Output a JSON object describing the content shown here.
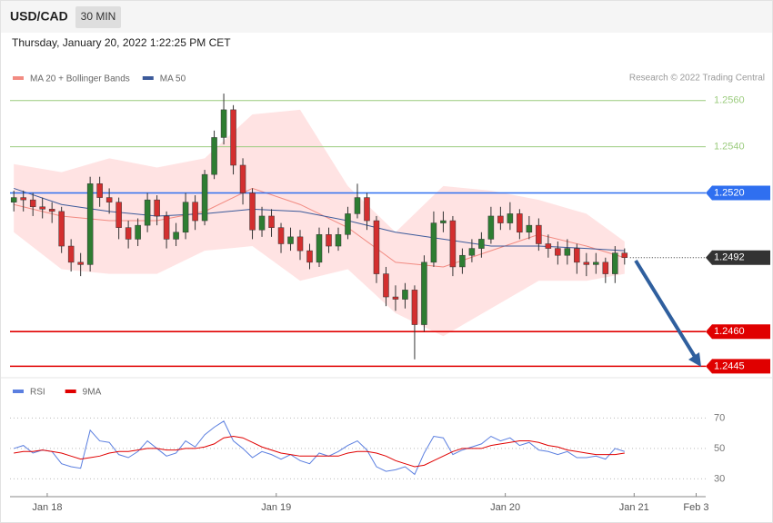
{
  "header": {
    "symbol": "USD/CAD",
    "timeframe": "30 MIN",
    "datetime": "Thursday, January 20, 2022 1:22:25 PM CET",
    "source": "Research © 2022 Trading Central"
  },
  "chart_data": [
    {
      "type": "candlestick",
      "xlim": [
        -0.4,
        72.5
      ],
      "ylim": [
        1.2442,
        1.2576
      ],
      "up_color": "#2e7d32",
      "down_color": "#d32f2f",
      "open": [
        1.2516,
        1.2518,
        1.2517,
        1.2514,
        1.2513,
        1.2512,
        1.2497,
        1.249,
        1.2489,
        1.2524,
        1.2518,
        1.2516,
        1.2505,
        1.25,
        1.2506,
        1.2517,
        1.251,
        1.25,
        1.2503,
        1.2516,
        1.2508,
        1.2528,
        1.2544,
        1.2556,
        1.2532,
        1.252,
        1.2504,
        1.251,
        1.2505,
        1.2498,
        1.2501,
        1.2495,
        1.249,
        1.2502,
        1.2497,
        1.2502,
        1.2511,
        1.2518,
        1.2508,
        1.2485,
        1.2475,
        1.2474,
        1.2478,
        1.2463,
        1.249,
        1.2507,
        1.2508,
        1.2488,
        1.2493,
        1.2496,
        1.25,
        1.251,
        1.2507,
        1.2511,
        1.2503,
        1.2506,
        1.2498,
        1.2496,
        1.2493,
        1.2496,
        1.249,
        1.2489,
        1.249,
        1.2485,
        1.2494
      ],
      "high": [
        1.2521,
        1.2521,
        1.252,
        1.2518,
        1.2516,
        1.2514,
        1.25,
        1.2494,
        1.2527,
        1.2527,
        1.2522,
        1.2518,
        1.2508,
        1.2509,
        1.252,
        1.2519,
        1.2512,
        1.2507,
        1.252,
        1.2519,
        1.253,
        1.2547,
        1.2563,
        1.2558,
        1.2535,
        1.2522,
        1.2514,
        1.2513,
        1.2507,
        1.2505,
        1.2504,
        1.2498,
        1.2505,
        1.2505,
        1.2505,
        1.2514,
        1.2524,
        1.252,
        1.251,
        1.2488,
        1.248,
        1.2481,
        1.248,
        1.2493,
        1.2512,
        1.2512,
        1.251,
        1.2496,
        1.25,
        1.2503,
        1.2514,
        1.2514,
        1.2516,
        1.2513,
        1.251,
        1.2509,
        1.2502,
        1.2499,
        1.25,
        1.2498,
        1.2494,
        1.2494,
        1.2492,
        1.2497,
        1.2496
      ],
      "low": [
        1.2512,
        1.2512,
        1.251,
        1.2509,
        1.2507,
        1.2494,
        1.2486,
        1.2484,
        1.2486,
        1.2514,
        1.2511,
        1.25,
        1.2496,
        1.2497,
        1.2503,
        1.2506,
        1.2496,
        1.2497,
        1.25,
        1.2504,
        1.2506,
        1.2526,
        1.2541,
        1.2528,
        1.2515,
        1.25,
        1.2501,
        1.2501,
        1.2494,
        1.2495,
        1.2491,
        1.2487,
        1.2488,
        1.2494,
        1.2495,
        1.25,
        1.2509,
        1.2504,
        1.2481,
        1.2471,
        1.2469,
        1.247,
        1.2448,
        1.246,
        1.2488,
        1.2503,
        1.2484,
        1.2485,
        1.249,
        1.2492,
        1.2498,
        1.2504,
        1.2504,
        1.25,
        1.25,
        1.2495,
        1.2492,
        1.2489,
        1.2489,
        1.2485,
        1.2484,
        1.2485,
        1.2481,
        1.2481,
        1.2489
      ],
      "close": [
        1.2518,
        1.2517,
        1.2514,
        1.2513,
        1.2512,
        1.2497,
        1.249,
        1.2489,
        1.2524,
        1.2518,
        1.2516,
        1.2505,
        1.25,
        1.2506,
        1.2517,
        1.251,
        1.25,
        1.2503,
        1.2516,
        1.2508,
        1.2528,
        1.2544,
        1.2556,
        1.2532,
        1.252,
        1.2504,
        1.251,
        1.2505,
        1.2498,
        1.2501,
        1.2495,
        1.249,
        1.2502,
        1.2497,
        1.2502,
        1.2511,
        1.2518,
        1.2508,
        1.2485,
        1.2475,
        1.2474,
        1.2478,
        1.2463,
        1.249,
        1.2507,
        1.2508,
        1.2488,
        1.2493,
        1.2496,
        1.25,
        1.251,
        1.2507,
        1.2511,
        1.2503,
        1.2506,
        1.2498,
        1.2496,
        1.2493,
        1.2496,
        1.249,
        1.2489,
        1.249,
        1.2485,
        1.2494,
        1.2492
      ],
      "series": [
        {
          "name": "MA 20 + Bollinger Bands",
          "color": "#f28b82",
          "band_color": "#ffd9d9",
          "x": [
            0,
            5,
            10,
            15,
            20,
            25,
            30,
            35,
            40,
            45,
            50,
            55,
            60,
            64
          ],
          "values": [
            1.2515,
            1.251,
            1.2508,
            1.2508,
            1.2512,
            1.2522,
            1.2515,
            1.2505,
            1.249,
            1.2488,
            1.2495,
            1.2502,
            1.2497,
            1.2492
          ],
          "upper": [
            1.25325,
            1.2529,
            1.2535,
            1.2531,
            1.2535,
            1.2554,
            1.2556,
            1.2523,
            1.2503,
            1.2523,
            1.2521,
            1.2517,
            1.2511,
            1.2499
          ],
          "lower": [
            1.2503,
            1.2487,
            1.2485,
            1.2485,
            1.2495,
            1.2497,
            1.2482,
            1.2487,
            1.2468,
            1.2458,
            1.247,
            1.2482,
            1.2482,
            1.2485
          ]
        },
        {
          "name": "MA 50",
          "color": "#3c5a9a",
          "x": [
            0,
            5,
            10,
            15,
            20,
            25,
            30,
            35,
            40,
            45,
            50,
            55,
            60,
            64
          ],
          "values": [
            1.2522,
            1.2515,
            1.2512,
            1.251,
            1.2511,
            1.2513,
            1.2512,
            1.2508,
            1.2503,
            1.25,
            1.2497,
            1.2497,
            1.2496,
            1.2495
          ]
        }
      ],
      "levels": [
        {
          "value": 1.256,
          "label": "1.2560",
          "color": "#9ccc7f",
          "boxed": false,
          "dotted": false
        },
        {
          "value": 1.254,
          "label": "1.2540",
          "color": "#9ccc7f",
          "boxed": false,
          "dotted": false
        },
        {
          "value": 1.252,
          "label": "1.2520",
          "color": "#2f6ff0",
          "boxed": true,
          "dotted": false
        },
        {
          "value": 1.2492,
          "label": "1.2492",
          "color": "#333333",
          "boxed": true,
          "dotted": true
        },
        {
          "value": 1.246,
          "label": "1.2460",
          "color": "#e00000",
          "boxed": true,
          "dotted": false
        },
        {
          "value": 1.2445,
          "label": "1.2445",
          "color": "#e00000",
          "boxed": true,
          "dotted": false
        }
      ]
    },
    {
      "type": "line",
      "xlim": [
        -0.4,
        72.5
      ],
      "ylim": [
        22.5,
        82.2
      ],
      "yticks": [
        70,
        50,
        30
      ],
      "xticks": [
        {
          "value": 3.5,
          "label": "Jan 18"
        },
        {
          "value": 27.5,
          "label": "Jan 19"
        },
        {
          "value": 51.5,
          "label": "Jan 20"
        },
        {
          "value": 65,
          "label": "Jan 21"
        },
        {
          "value": 71.5,
          "label": "Feb 3"
        }
      ],
      "series": [
        {
          "name": "RSI",
          "color": "#5b7fe0",
          "values": [
            50,
            52,
            47,
            49,
            48,
            40,
            38,
            37,
            62,
            55,
            54,
            46,
            44,
            48,
            55,
            50,
            45,
            47,
            55,
            51,
            59,
            64,
            68,
            55,
            50,
            44,
            48,
            46,
            43,
            46,
            42,
            40,
            47,
            45,
            48,
            52,
            55,
            49,
            38,
            35,
            36,
            38,
            33,
            47,
            58,
            57,
            46,
            49,
            51,
            53,
            58,
            55,
            57,
            52,
            54,
            49,
            48,
            46,
            48,
            44,
            44,
            45,
            43,
            50,
            48
          ]
        },
        {
          "name": "9MA",
          "color": "#e00000",
          "values": [
            47,
            48,
            48,
            49,
            48,
            47,
            45,
            43,
            44,
            45,
            47,
            48,
            48,
            49,
            50,
            50,
            49,
            49,
            50,
            50,
            51,
            53,
            57,
            58,
            57,
            54,
            51,
            49,
            47,
            46,
            45,
            45,
            45,
            45,
            45,
            47,
            48,
            48,
            47,
            45,
            42,
            40,
            38,
            39,
            42,
            45,
            48,
            50,
            50,
            50,
            52,
            53,
            54,
            55,
            55,
            54,
            52,
            51,
            49,
            48,
            47,
            46,
            46,
            46,
            47
          ]
        }
      ]
    }
  ]
}
